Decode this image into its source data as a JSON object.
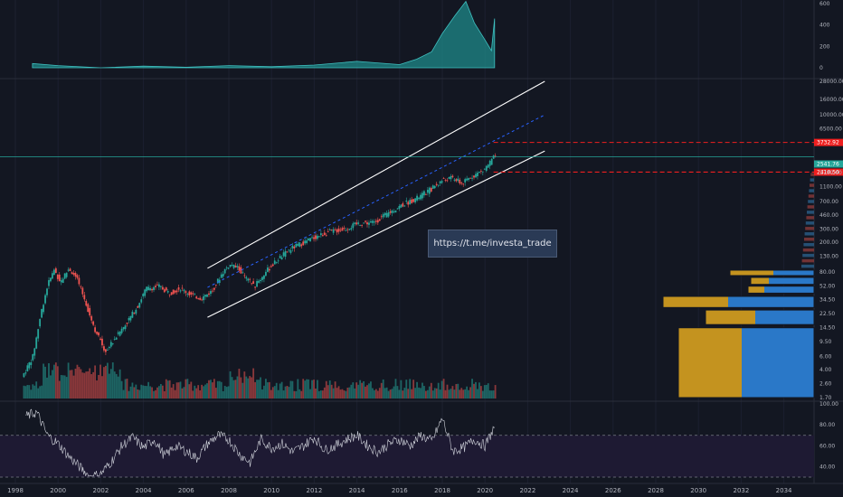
{
  "colors": {
    "background": "#131722",
    "up": "#26a69a",
    "down": "#ef5350",
    "channel": "#ffffff",
    "median": "#2962ff",
    "level_line": "#ef1f1f",
    "price_line": "#26a69a",
    "vp_left": "#c4931f",
    "vp_right": "#2a78c8",
    "rsi_line": "#d1d4dc",
    "rsi_band": "#1e1a33",
    "top_area": "#1f8a8a"
  },
  "watermark_link": "https://t.me/investa_trade",
  "chart_data": [
    {
      "type": "area",
      "panel": "top-indicator",
      "y_ticks": [
        "600",
        "400",
        "200",
        "0"
      ],
      "x": [
        1998.8,
        2000,
        2002,
        2004,
        2006,
        2008,
        2010,
        2012,
        2014,
        2016,
        2016.8,
        2017.5,
        2018,
        2018.6,
        2019.1,
        2019.5,
        2020,
        2020.3,
        2020.45
      ],
      "values": [
        40,
        20,
        0,
        15,
        5,
        20,
        10,
        25,
        60,
        30,
        80,
        150,
        320,
        490,
        620,
        420,
        260,
        160,
        460
      ]
    },
    {
      "type": "line",
      "panel": "price",
      "scale": "log",
      "y_ticks": [
        "28000.00",
        "16000.00",
        "10000.00",
        "6500.00",
        "3732.92",
        "2541.76",
        "2410.50",
        "1700.00",
        "1100.00",
        "700.00",
        "460.00",
        "300.00",
        "200.00",
        "130.00",
        "80.00",
        "52.00",
        "34.50",
        "22.50",
        "14.50",
        "9.50",
        "6.00",
        "4.00",
        "2.60",
        "1.70"
      ],
      "x_ticks": [
        "1998",
        "2000",
        "2002",
        "2004",
        "2006",
        "2008",
        "2010",
        "2012",
        "2014",
        "2016",
        "2018",
        "2020",
        "2022",
        "2024",
        "2026",
        "2028",
        "2030",
        "2032",
        "2034"
      ],
      "x": [
        1998.4,
        1998.9,
        1999.3,
        1999.6,
        1999.9,
        2000.2,
        2000.6,
        2001.0,
        2001.4,
        2001.8,
        2002.3,
        2002.8,
        2003.3,
        2003.8,
        2004.2,
        2004.8,
        2005.3,
        2005.8,
        2006.3,
        2006.8,
        2007.3,
        2007.8,
        2008.1,
        2008.5,
        2008.9,
        2009.3,
        2009.8,
        2010.4,
        2011.0,
        2011.6,
        2012.2,
        2012.8,
        2013.5,
        2014.2,
        2014.9,
        2015.6,
        2016.3,
        2016.9,
        2017.5,
        2018.1,
        2018.6,
        2019.0,
        2019.5,
        2020.0,
        2020.3,
        2020.55
      ],
      "values": [
        3.2,
        6,
        24,
        55,
        85,
        60,
        90,
        62,
        30,
        14,
        7,
        11,
        17,
        28,
        48,
        52,
        42,
        49,
        40,
        36,
        45,
        80,
        100,
        92,
        65,
        52,
        80,
        120,
        165,
        200,
        240,
        275,
        300,
        360,
        370,
        500,
        650,
        780,
        1000,
        1350,
        1450,
        1200,
        1550,
        1800,
        2300,
        2800
      ],
      "labels": {
        "target_high": "3732.92",
        "current": "2541.76",
        "level": "2410.50"
      },
      "channel": {
        "upper": [
          [
            2007.0,
            90
          ],
          [
            2022.8,
            28000
          ]
        ],
        "lower": [
          [
            2007.0,
            20
          ],
          [
            2022.8,
            3300
          ]
        ],
        "median": [
          [
            2007.0,
            50
          ],
          [
            2022.8,
            10000
          ]
        ]
      }
    },
    {
      "type": "bar",
      "panel": "volume",
      "x_range": [
        1998.2,
        2020.6
      ],
      "note_series": "volume"
    },
    {
      "type": "bar",
      "panel": "volume-profile",
      "rows": [
        {
          "price_from": 1.7,
          "price_to": 14.5,
          "left": 70,
          "right": 80
        },
        {
          "price_from": 16,
          "price_to": 25,
          "left": 55,
          "right": 65
        },
        {
          "price_from": 27,
          "price_to": 38,
          "left": 72,
          "right": 95
        },
        {
          "price_from": 42,
          "price_to": 52,
          "left": 18,
          "right": 55
        },
        {
          "price_from": 55,
          "price_to": 68,
          "left": 20,
          "right": 50
        },
        {
          "price_from": 72,
          "price_to": 85,
          "left": 48,
          "right": 45
        }
      ]
    },
    {
      "type": "line",
      "panel": "rsi",
      "y_ticks": [
        "100.00",
        "80.00",
        "60.00",
        "40.00"
      ],
      "bands": [
        70,
        30
      ],
      "x": [
        1998.5,
        1999.0,
        1999.5,
        2000.0,
        2000.5,
        2001.0,
        2001.5,
        2002.0,
        2002.5,
        2003.0,
        2003.5,
        2004.0,
        2004.5,
        2005.0,
        2005.5,
        2006.0,
        2006.5,
        2007.0,
        2007.5,
        2008.0,
        2008.5,
        2009.0,
        2009.5,
        2010.0,
        2010.5,
        2011.0,
        2011.5,
        2012.0,
        2012.5,
        2013.0,
        2013.5,
        2014.0,
        2014.5,
        2015.0,
        2015.5,
        2016.0,
        2016.5,
        2017.0,
        2017.5,
        2018.0,
        2018.5,
        2019.0,
        2019.5,
        2020.0,
        2020.5
      ],
      "values": [
        88,
        92,
        70,
        62,
        50,
        40,
        30,
        33,
        45,
        60,
        68,
        58,
        66,
        50,
        60,
        55,
        48,
        62,
        70,
        66,
        52,
        44,
        66,
        58,
        62,
        54,
        60,
        68,
        56,
        60,
        66,
        70,
        60,
        54,
        62,
        66,
        60,
        70,
        64,
        86,
        55,
        58,
        66,
        60,
        80
      ]
    }
  ]
}
